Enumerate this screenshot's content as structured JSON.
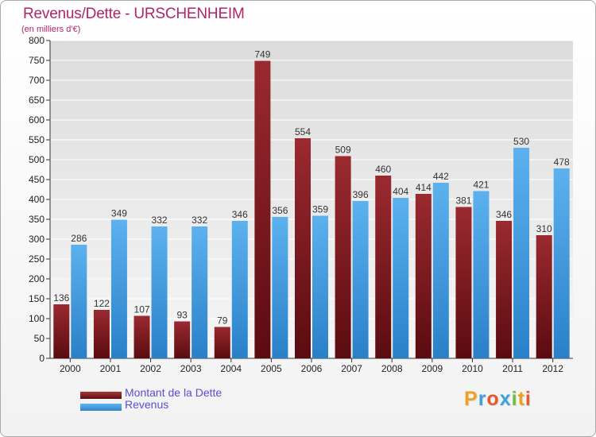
{
  "header": {
    "title": "Revenus/Dette - URSCHENHEIM",
    "subtitle": "(en milliers d'€)"
  },
  "colors": {
    "dette": "#8b1f25",
    "revenus": "#3e9be0",
    "title": "#b0246a",
    "legend_text": "#5a4fd6"
  },
  "legend": {
    "dette_label": "Montant de la Dette",
    "revenus_label": "Revenus"
  },
  "brand": {
    "letters": [
      "P",
      "r",
      "o",
      "x",
      "i",
      "t",
      "i"
    ],
    "colors": [
      "#f0a020",
      "#3ea0e0",
      "#e55a2a",
      "#3ea0e0",
      "#6cbd3a",
      "#f0a020",
      "#e55a2a"
    ]
  },
  "chart_data": {
    "type": "bar",
    "title": "Revenus/Dette - URSCHENHEIM",
    "subtitle": "(en milliers d'€)",
    "xlabel": "",
    "ylabel": "",
    "ylim": [
      0,
      800
    ],
    "ytick_step": 50,
    "grid": true,
    "legend_position": "bottom-left",
    "categories": [
      "2000",
      "2001",
      "2002",
      "2003",
      "2004",
      "2005",
      "2006",
      "2007",
      "2008",
      "2009",
      "2010",
      "2011",
      "2012"
    ],
    "series": [
      {
        "name": "Montant de la Dette",
        "color": "#8b1f25",
        "values": [
          136,
          122,
          107,
          93,
          79,
          749,
          554,
          509,
          460,
          414,
          381,
          346,
          310
        ]
      },
      {
        "name": "Revenus",
        "color": "#3e9be0",
        "values": [
          286,
          349,
          332,
          332,
          346,
          356,
          359,
          396,
          404,
          442,
          421,
          530,
          478
        ]
      }
    ]
  }
}
